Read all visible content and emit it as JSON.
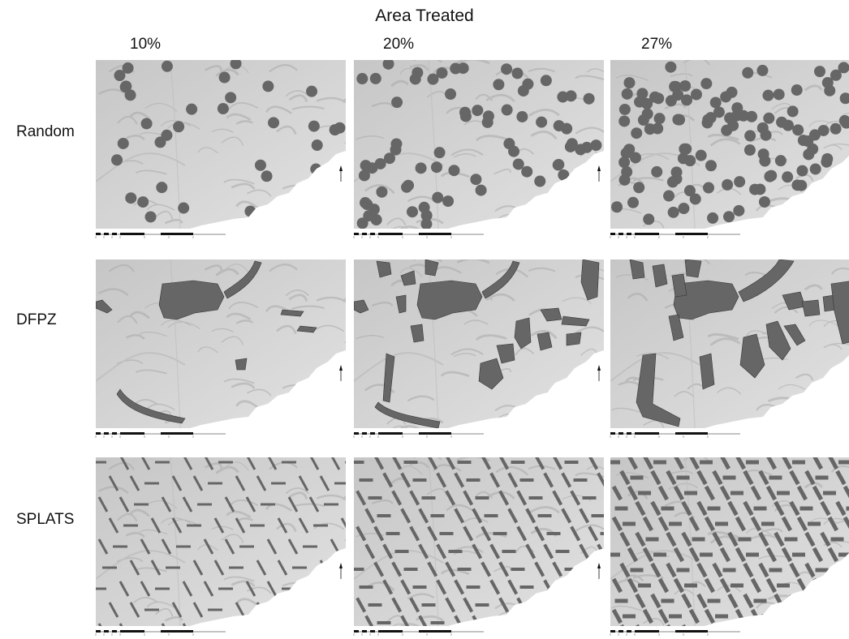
{
  "title": "Area Treated",
  "columns": [
    "10%",
    "20%",
    "27%"
  ],
  "rows": [
    "Random",
    "DFPZ",
    "SPLATS"
  ],
  "colors": {
    "terrain": "#d4d4d4",
    "terrain_dark": "#a9a9a9",
    "treatment": "#666666",
    "outline": "#333333",
    "scalebar": "#111111"
  },
  "icons": [
    "north-arrow-icon",
    "scale-bar-icon"
  ]
}
